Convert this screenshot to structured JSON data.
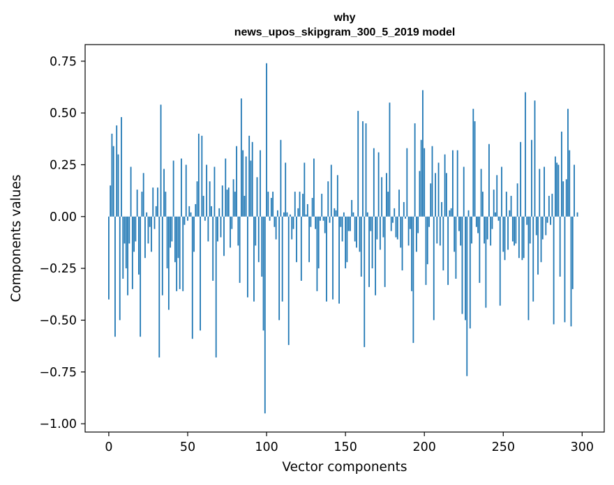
{
  "chart_data": {
    "type": "bar",
    "title_line1": "why",
    "title_line2": "news_upos_skipgram_300_5_2019 model",
    "xlabel": "Vector components",
    "ylabel": "Components values",
    "xlim": [
      -15,
      314
    ],
    "ylim": [
      -1.04,
      0.83
    ],
    "xticks": [
      0,
      50,
      100,
      150,
      200,
      250,
      300
    ],
    "yticks": [
      -1.0,
      -0.75,
      -0.5,
      -0.25,
      0.0,
      0.25,
      0.5,
      0.75
    ],
    "ytick_labels": [
      "−1.00",
      "−0.75",
      "−0.50",
      "−0.25",
      "0.00",
      "0.25",
      "0.50",
      "0.75"
    ],
    "bar_color": "#1f77b4",
    "values": [
      -0.4,
      0.15,
      0.4,
      0.34,
      -0.58,
      0.44,
      0.3,
      -0.5,
      0.48,
      -0.3,
      -0.13,
      -0.25,
      -0.38,
      -0.13,
      0.24,
      -0.35,
      -0.17,
      -0.12,
      0.13,
      -0.28,
      -0.58,
      0.12,
      0.21,
      -0.2,
      0.02,
      -0.13,
      -0.05,
      -0.17,
      0.14,
      -0.06,
      0.05,
      0.14,
      -0.68,
      0.54,
      -0.38,
      0.23,
      0.12,
      -0.25,
      -0.45,
      -0.15,
      -0.12,
      0.27,
      -0.22,
      -0.36,
      -0.2,
      -0.35,
      0.28,
      -0.36,
      -0.04,
      0.25,
      -0.02,
      0.05,
      0.02,
      -0.59,
      -0.17,
      0.06,
      0.17,
      0.4,
      -0.55,
      0.39,
      0.1,
      -0.02,
      0.25,
      -0.12,
      0.17,
      0.05,
      -0.31,
      0.24,
      -0.68,
      -0.12,
      0.04,
      -0.1,
      0.15,
      -0.19,
      0.28,
      0.13,
      0.14,
      -0.15,
      -0.06,
      0.18,
      0.12,
      0.34,
      -0.14,
      -0.32,
      0.57,
      0.32,
      0.1,
      0.29,
      -0.39,
      0.39,
      0.27,
      0.36,
      -0.41,
      -0.14,
      0.19,
      -0.22,
      0.32,
      -0.29,
      -0.55,
      -0.95,
      0.74,
      0.12,
      -0.02,
      0.09,
      0.12,
      -0.05,
      -0.11,
      0.03,
      -0.5,
      0.37,
      -0.41,
      0.02,
      0.26,
      0.02,
      -0.62,
      0.01,
      -0.11,
      -0.06,
      0.12,
      -0.22,
      0.04,
      0.12,
      -0.31,
      0.11,
      0.26,
      0.01,
      0.06,
      -0.22,
      -0.05,
      0.09,
      0.28,
      -0.06,
      -0.36,
      -0.25,
      -0.02,
      0.11,
      -0.02,
      -0.08,
      -0.41,
      0.17,
      -0.03,
      0.25,
      -0.4,
      0.04,
      0.03,
      0.2,
      -0.42,
      -0.05,
      -0.12,
      0.02,
      -0.25,
      -0.22,
      -0.07,
      -0.07,
      0.08,
      0.02,
      -0.12,
      -0.15,
      0.51,
      -0.17,
      -0.29,
      0.46,
      -0.63,
      0.45,
      0.02,
      -0.34,
      -0.07,
      -0.25,
      0.33,
      -0.38,
      -0.11,
      0.31,
      -0.16,
      0.19,
      -0.1,
      -0.34,
      0.21,
      0.12,
      0.55,
      -0.07,
      -0.03,
      0.04,
      -0.1,
      -0.11,
      0.13,
      -0.15,
      -0.26,
      0.07,
      -0.01,
      0.33,
      -0.14,
      -0.06,
      -0.36,
      -0.61,
      0.45,
      -0.17,
      -0.08,
      0.22,
      0.37,
      0.61,
      0.33,
      -0.33,
      -0.23,
      -0.05,
      0.16,
      0.34,
      -0.5,
      0.21,
      -0.13,
      0.26,
      -0.14,
      0.07,
      -0.26,
      0.3,
      0.21,
      -0.33,
      0.03,
      0.04,
      0.32,
      -0.17,
      -0.3,
      0.32,
      -0.07,
      -0.14,
      -0.47,
      0.24,
      -0.5,
      -0.77,
      0.03,
      -0.54,
      -0.13,
      0.52,
      0.46,
      -0.05,
      -0.08,
      -0.32,
      0.23,
      0.12,
      -0.13,
      -0.44,
      -0.11,
      0.35,
      -0.14,
      -0.06,
      0.13,
      0.02,
      0.2,
      -0.02,
      -0.43,
      0.24,
      -0.17,
      -0.21,
      0.12,
      -0.16,
      0.03,
      0.1,
      -0.12,
      -0.14,
      -0.13,
      0.16,
      -0.2,
      0.36,
      -0.21,
      -0.2,
      0.6,
      -0.04,
      -0.5,
      -0.13,
      0.37,
      -0.41,
      0.56,
      -0.09,
      -0.28,
      0.23,
      -0.22,
      -0.11,
      0.24,
      -0.09,
      -0.03,
      0.1,
      -0.04,
      0.11,
      -0.52,
      0.29,
      0.26,
      0.25,
      -0.29,
      0.41,
      0.17,
      -0.51,
      0.18,
      0.52,
      0.32,
      -0.53,
      -0.35,
      0.25,
      0.0,
      0.02,
      0.0,
      0.0
    ]
  }
}
